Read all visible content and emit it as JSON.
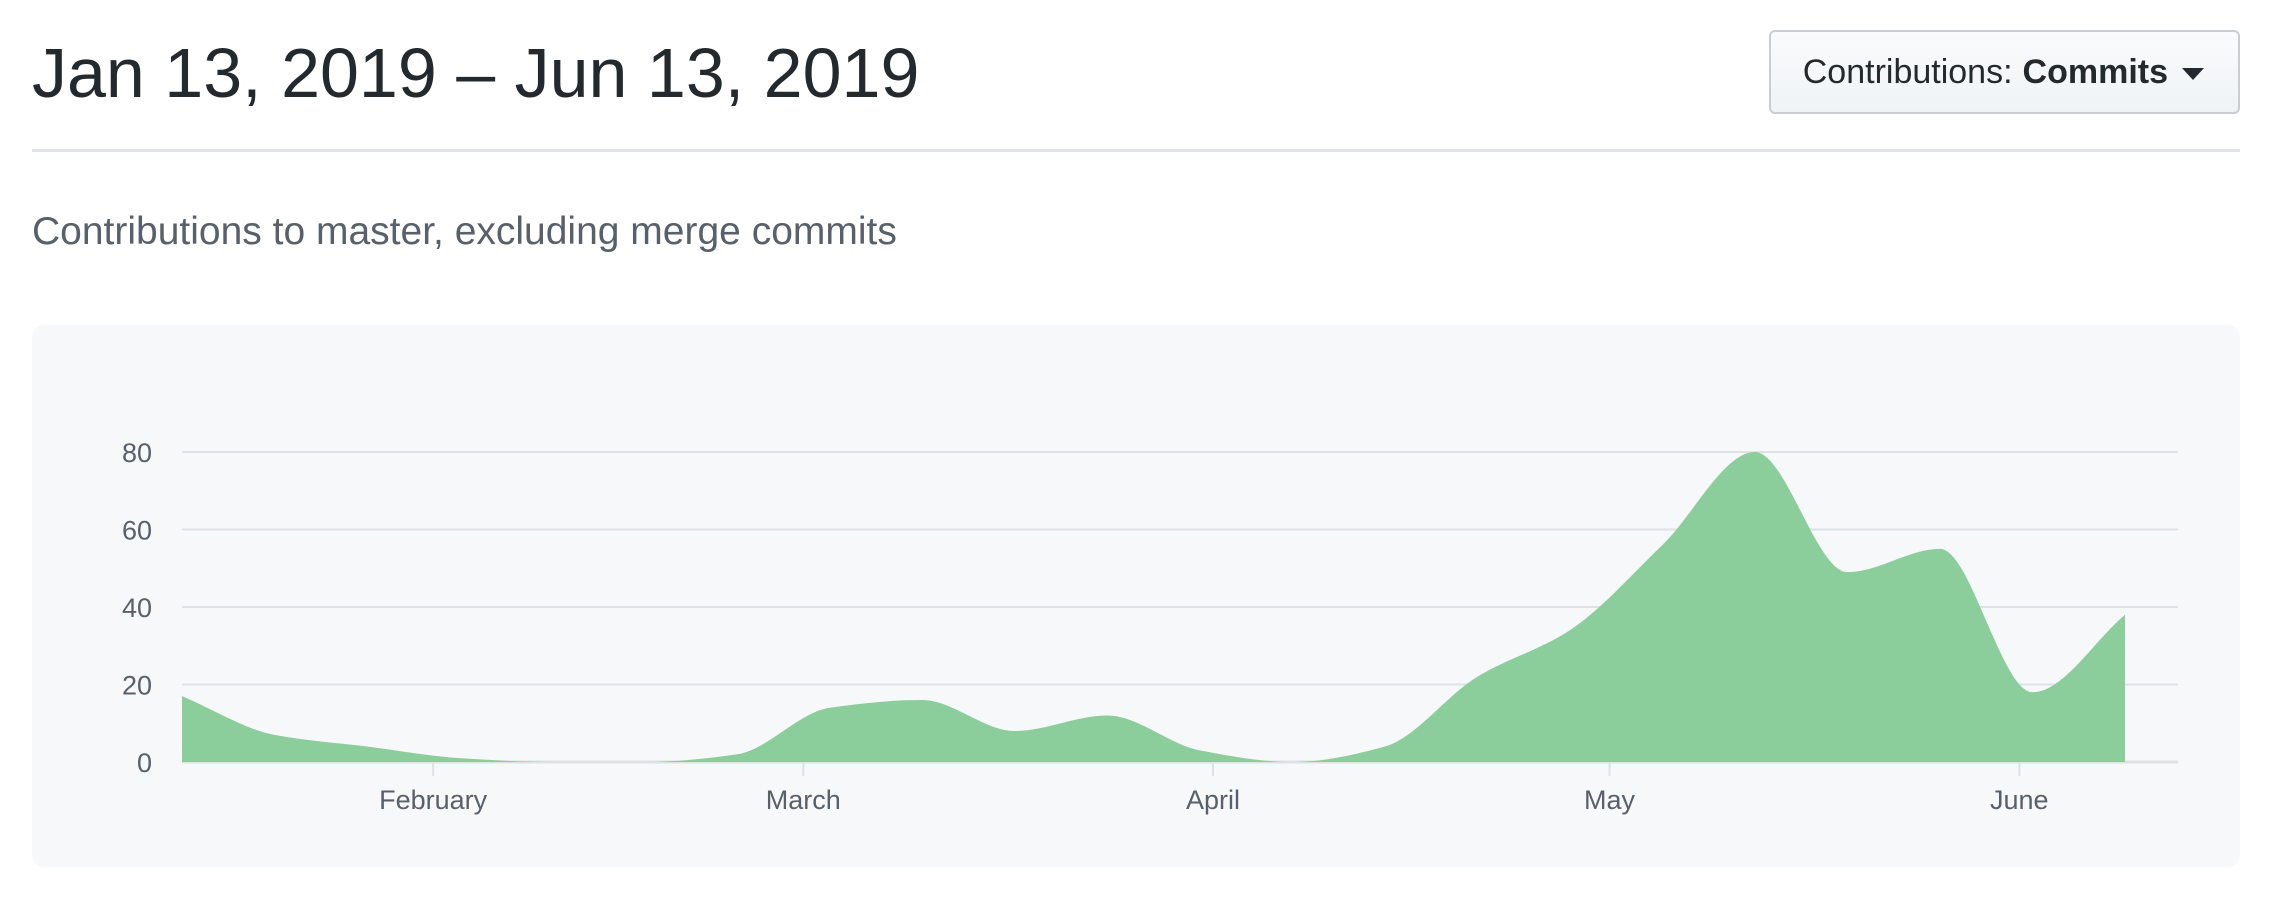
{
  "header": {
    "date_range": "Jan 13, 2019 – Jun 13, 2019",
    "contributions_select": {
      "label": "Contributions:",
      "value": "Commits"
    }
  },
  "subtitle": "Contributions to master, excluding merge commits",
  "colors": {
    "area_fill": "#8cce9b",
    "grid": "#dfe2e5",
    "axis_text": "#586069"
  },
  "chart_data": {
    "type": "area",
    "title": "",
    "xlabel": "",
    "ylabel": "",
    "x_range": [
      "2019-01-13",
      "2019-06-09"
    ],
    "ylim": [
      0,
      80
    ],
    "y_ticks": [
      "0",
      "20",
      "40",
      "60",
      "80"
    ],
    "x_ticks": [
      {
        "date": "2019-02-01",
        "label": "February"
      },
      {
        "date": "2019-03-01",
        "label": "March"
      },
      {
        "date": "2019-04-01",
        "label": "April"
      },
      {
        "date": "2019-05-01",
        "label": "May"
      },
      {
        "date": "2019-06-01",
        "label": "June"
      }
    ],
    "grid": true,
    "legend": "none",
    "series": [
      {
        "x": [
          "2019-01-13",
          "2019-01-20",
          "2019-01-27",
          "2019-02-03",
          "2019-02-10",
          "2019-02-17",
          "2019-02-24",
          "2019-03-03",
          "2019-03-10",
          "2019-03-17",
          "2019-03-24",
          "2019-03-31",
          "2019-04-07",
          "2019-04-14",
          "2019-04-21",
          "2019-04-28",
          "2019-05-05",
          "2019-05-12",
          "2019-05-19",
          "2019-05-26",
          "2019-06-02",
          "2019-06-09"
        ],
        "values": [
          17,
          7,
          4,
          1,
          0,
          0,
          2,
          14,
          16,
          8,
          12,
          3,
          0,
          4,
          22,
          34,
          56,
          80,
          49,
          55,
          18,
          38
        ]
      }
    ]
  }
}
